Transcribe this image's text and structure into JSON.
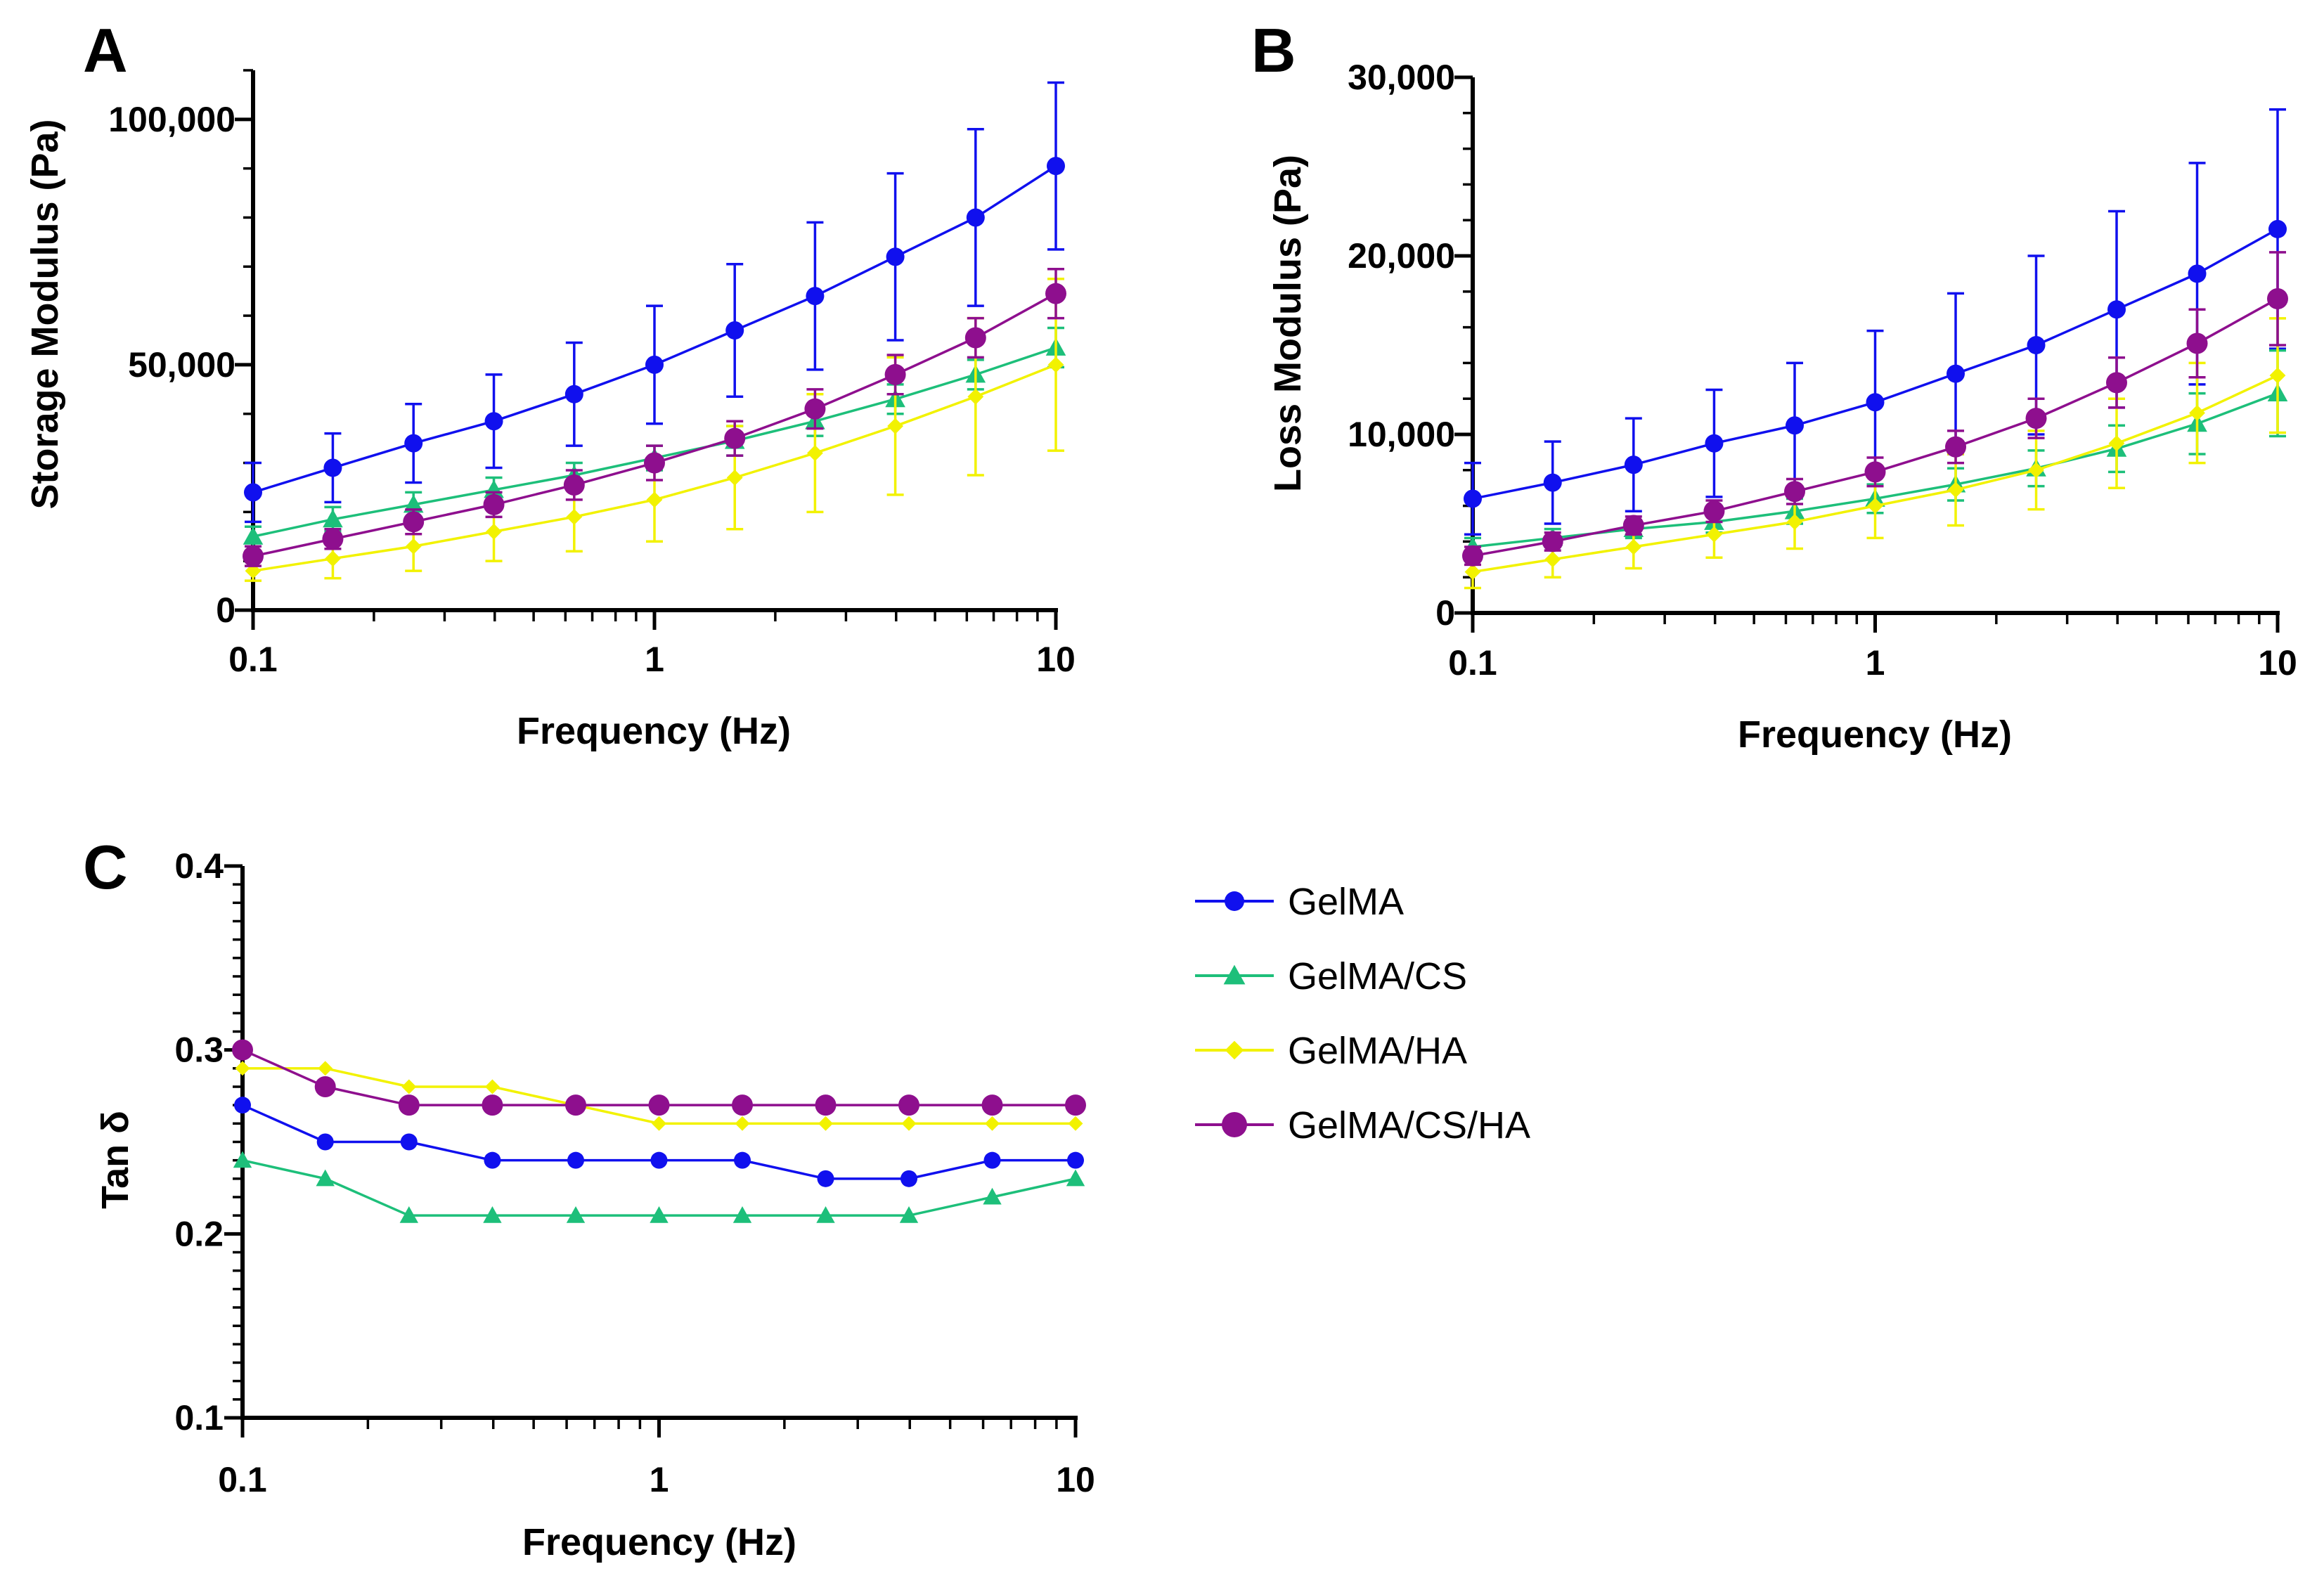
{
  "colors": {
    "GelMA": "#1010ee",
    "GelMA/CS": "#1dbf7a",
    "GelMA/HA": "#f2f200",
    "GelMA/CS/HA": "#8e0f8e"
  },
  "legend": {
    "items": [
      {
        "label": "GelMA",
        "marker": "circle-icon",
        "color": "#1010ee"
      },
      {
        "label": "GelMA/CS",
        "marker": "triangle-icon",
        "color": "#1dbf7a"
      },
      {
        "label": "GelMA/HA",
        "marker": "diamond-icon",
        "color": "#f2f200"
      },
      {
        "label": "GelMA/CS/HA",
        "marker": "circle-icon",
        "color": "#8e0f8e"
      }
    ]
  },
  "chart_data": [
    {
      "panel": "A",
      "type": "line",
      "xscale": "log",
      "xlabel": "Frequency (Hz)",
      "ylabel": "Storage Modulus (Pa)",
      "xlim": [
        0.1,
        10
      ],
      "ylim": [
        0,
        110000
      ],
      "xticks": [
        0.1,
        1,
        10
      ],
      "xtick_labels": [
        "0.1",
        "1",
        "10"
      ],
      "yticks": [
        0,
        50000,
        100000
      ],
      "ytick_labels": [
        "0",
        "50,000",
        "100,000"
      ],
      "x": [
        0.1,
        0.158,
        0.251,
        0.398,
        0.631,
        1,
        1.585,
        2.512,
        3.981,
        6.31,
        10
      ],
      "series": [
        {
          "name": "GelMA",
          "marker": "circle",
          "values": [
            24000,
            29000,
            34000,
            38500,
            44000,
            50000,
            57000,
            64000,
            72000,
            80000,
            90500
          ],
          "errors": [
            6000,
            7000,
            8000,
            9500,
            10500,
            12000,
            13500,
            15000,
            17000,
            18000,
            17000
          ]
        },
        {
          "name": "GelMA/CS",
          "marker": "triangle",
          "values": [
            15000,
            18500,
            21500,
            24500,
            27500,
            31000,
            34500,
            38500,
            43000,
            48000,
            53500
          ],
          "errors": [
            2000,
            2500,
            2500,
            2500,
            2500,
            2500,
            3000,
            3000,
            3000,
            3000,
            4000
          ]
        },
        {
          "name": "GelMA/HA",
          "marker": "diamond",
          "values": [
            8000,
            10500,
            13000,
            16000,
            19000,
            22500,
            27000,
            32000,
            37500,
            43500,
            50000
          ],
          "errors": [
            2000,
            4000,
            5000,
            6000,
            7000,
            8500,
            10500,
            12000,
            14000,
            16000,
            17500
          ]
        },
        {
          "name": "GelMA/CS/HA",
          "marker": "circle",
          "values": [
            11000,
            14500,
            18000,
            21500,
            25500,
            30000,
            35000,
            41000,
            48000,
            55500,
            64500
          ],
          "errors": [
            2000,
            2000,
            2500,
            2500,
            3000,
            3500,
            3500,
            4000,
            4000,
            4000,
            5000
          ]
        }
      ]
    },
    {
      "panel": "B",
      "type": "line",
      "xscale": "log",
      "xlabel": "Frequency (Hz)",
      "ylabel": "Loss Modulus (Pa)",
      "xlim": [
        0.1,
        10
      ],
      "ylim": [
        0,
        30000
      ],
      "xticks": [
        0.1,
        1,
        10
      ],
      "xtick_labels": [
        "0.1",
        "1",
        "10"
      ],
      "yticks": [
        0,
        10000,
        20000,
        30000
      ],
      "ytick_labels": [
        "0",
        "10,000",
        "20,000",
        "30,000"
      ],
      "x": [
        0.1,
        0.158,
        0.251,
        0.398,
        0.631,
        1,
        1.585,
        2.512,
        3.981,
        6.31,
        10
      ],
      "series": [
        {
          "name": "GelMA",
          "marker": "circle",
          "values": [
            6400,
            7300,
            8300,
            9500,
            10500,
            11800,
            13400,
            15000,
            17000,
            19000,
            21500
          ],
          "errors": [
            2000,
            2300,
            2600,
            3000,
            3500,
            4000,
            4500,
            5000,
            5500,
            6200,
            6700
          ]
        },
        {
          "name": "GelMA/CS",
          "marker": "triangle",
          "values": [
            3700,
            4200,
            4700,
            5100,
            5700,
            6400,
            7200,
            8100,
            9200,
            10600,
            12300
          ],
          "errors": [
            500,
            500,
            500,
            600,
            700,
            800,
            900,
            1000,
            1300,
            1700,
            2400
          ]
        },
        {
          "name": "GelMA/HA",
          "marker": "diamond",
          "values": [
            2300,
            3000,
            3700,
            4400,
            5100,
            6000,
            6900,
            8000,
            9500,
            11200,
            13300
          ],
          "errors": [
            900,
            1000,
            1200,
            1300,
            1500,
            1800,
            2000,
            2200,
            2500,
            2800,
            3200
          ]
        },
        {
          "name": "GelMA/CS/HA",
          "marker": "circle",
          "values": [
            3200,
            4000,
            4900,
            5700,
            6800,
            7900,
            9300,
            10900,
            12900,
            15100,
            17600
          ],
          "errors": [
            500,
            500,
            500,
            600,
            700,
            800,
            900,
            1100,
            1400,
            1900,
            2600
          ]
        }
      ]
    },
    {
      "panel": "C",
      "type": "line",
      "xscale": "log",
      "xlabel": "Frequency (Hz)",
      "ylabel": "Tan δ",
      "xlim": [
        0.1,
        10
      ],
      "ylim": [
        0.1,
        0.4
      ],
      "xticks": [
        0.1,
        1,
        10
      ],
      "xtick_labels": [
        "0.1",
        "1",
        "10"
      ],
      "yticks": [
        0.1,
        0.2,
        0.3,
        0.4
      ],
      "ytick_labels": [
        "0.1",
        "0.2",
        "0.3",
        "0.4"
      ],
      "x": [
        0.1,
        0.158,
        0.251,
        0.398,
        0.631,
        1,
        1.585,
        2.512,
        3.981,
        6.31,
        10
      ],
      "series": [
        {
          "name": "GelMA",
          "marker": "circle",
          "values": [
            0.27,
            0.25,
            0.25,
            0.24,
            0.24,
            0.24,
            0.24,
            0.23,
            0.23,
            0.24,
            0.24
          ]
        },
        {
          "name": "GelMA/CS",
          "marker": "triangle",
          "values": [
            0.24,
            0.23,
            0.21,
            0.21,
            0.21,
            0.21,
            0.21,
            0.21,
            0.21,
            0.22,
            0.23
          ]
        },
        {
          "name": "GelMA/HA",
          "marker": "diamond",
          "values": [
            0.29,
            0.29,
            0.28,
            0.28,
            0.27,
            0.26,
            0.26,
            0.26,
            0.26,
            0.26,
            0.26
          ]
        },
        {
          "name": "GelMA/CS/HA",
          "marker": "circle",
          "values": [
            0.3,
            0.28,
            0.27,
            0.27,
            0.27,
            0.27,
            0.27,
            0.27,
            0.27,
            0.27,
            0.27
          ]
        }
      ]
    }
  ]
}
